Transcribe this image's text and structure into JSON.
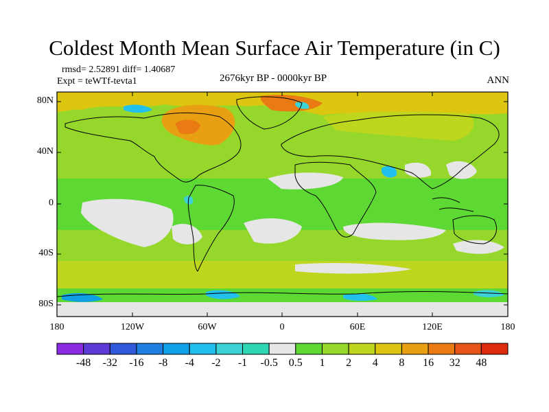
{
  "title": "Coldest Month Mean Surface Air Temperature (in C)",
  "stats": "rmsd= 2.52891 diff= 1.40687",
  "experiment": "Expt = teWTf-tevta1",
  "period": "2676kyr BP - 0000kyr BP",
  "season": "ANN",
  "y_axis_labels": [
    "80N",
    "40N",
    "0",
    "40S",
    "80S"
  ],
  "x_axis_labels": [
    "180",
    "120W",
    "60W",
    "0",
    "60E",
    "120E",
    "180"
  ],
  "colorbar": {
    "labels": [
      "-48",
      "-32",
      "-16",
      "-8",
      "-4",
      "-2",
      "-1",
      "-0.5",
      "0.5",
      "1",
      "2",
      "4",
      "8",
      "16",
      "32",
      "48"
    ],
    "colors": [
      "#8a2be2",
      "#5b3ad6",
      "#2f59d9",
      "#1e7fe0",
      "#10a0e6",
      "#22c0ec",
      "#3dd2d6",
      "#2fd6b4",
      "#e6e6e6",
      "#5ed832",
      "#95d82b",
      "#bed61d",
      "#dcc60f",
      "#e8a012",
      "#ea7b14",
      "#e65418",
      "#e02a10"
    ]
  },
  "chart_data": {
    "type": "heatmap",
    "title": "Coldest Month Mean Surface Air Temperature (in C)",
    "projection": "cylindrical equidistant",
    "lon_range": [
      -180,
      180
    ],
    "lat_range": [
      -90,
      90
    ],
    "levels": [
      -48,
      -32,
      -16,
      -8,
      -4,
      -2,
      -1,
      -0.5,
      0.5,
      1,
      2,
      4,
      8,
      16,
      32,
      48
    ],
    "dominant_value_range": [
      1,
      4
    ],
    "notable_regions": [
      "Warm anomaly (8 to 32) over northern Canada / Greenland and the Arctic",
      "Near-zero anomaly (-0.5 to 0.5) bands in subtropical oceans and North Africa",
      "Cool anomaly (-1 to -8) patches near the Antarctic coast"
    ]
  }
}
